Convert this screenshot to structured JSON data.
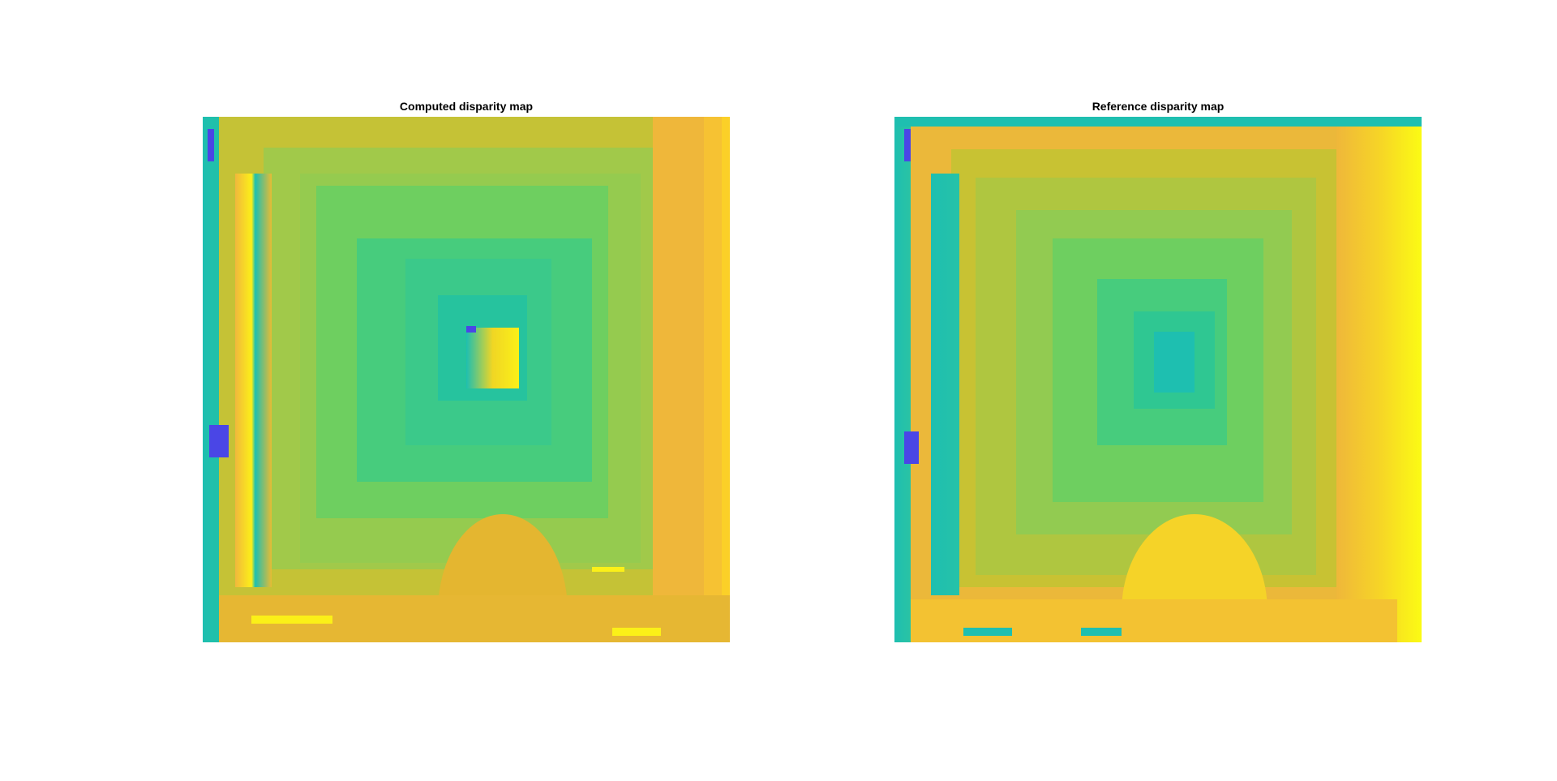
{
  "figure": {
    "panels": [
      {
        "title": "Computed disparity map",
        "colormap": "parula"
      },
      {
        "title": "Reference disparity map",
        "colormap": "parula"
      }
    ]
  },
  "colors": {
    "background": "#ffffff",
    "cyan_edge": "#1ebfb0",
    "teal": "#21c0a8",
    "green_center": "#3fcc85",
    "mid_green": "#6dcf60",
    "yellow_green": "#9cc94a",
    "olive": "#c9c232",
    "orange": "#ecb73a",
    "bright_yellow": "#f5e41d",
    "yellow": "#fbfb14",
    "blue": "#4a46e6"
  }
}
